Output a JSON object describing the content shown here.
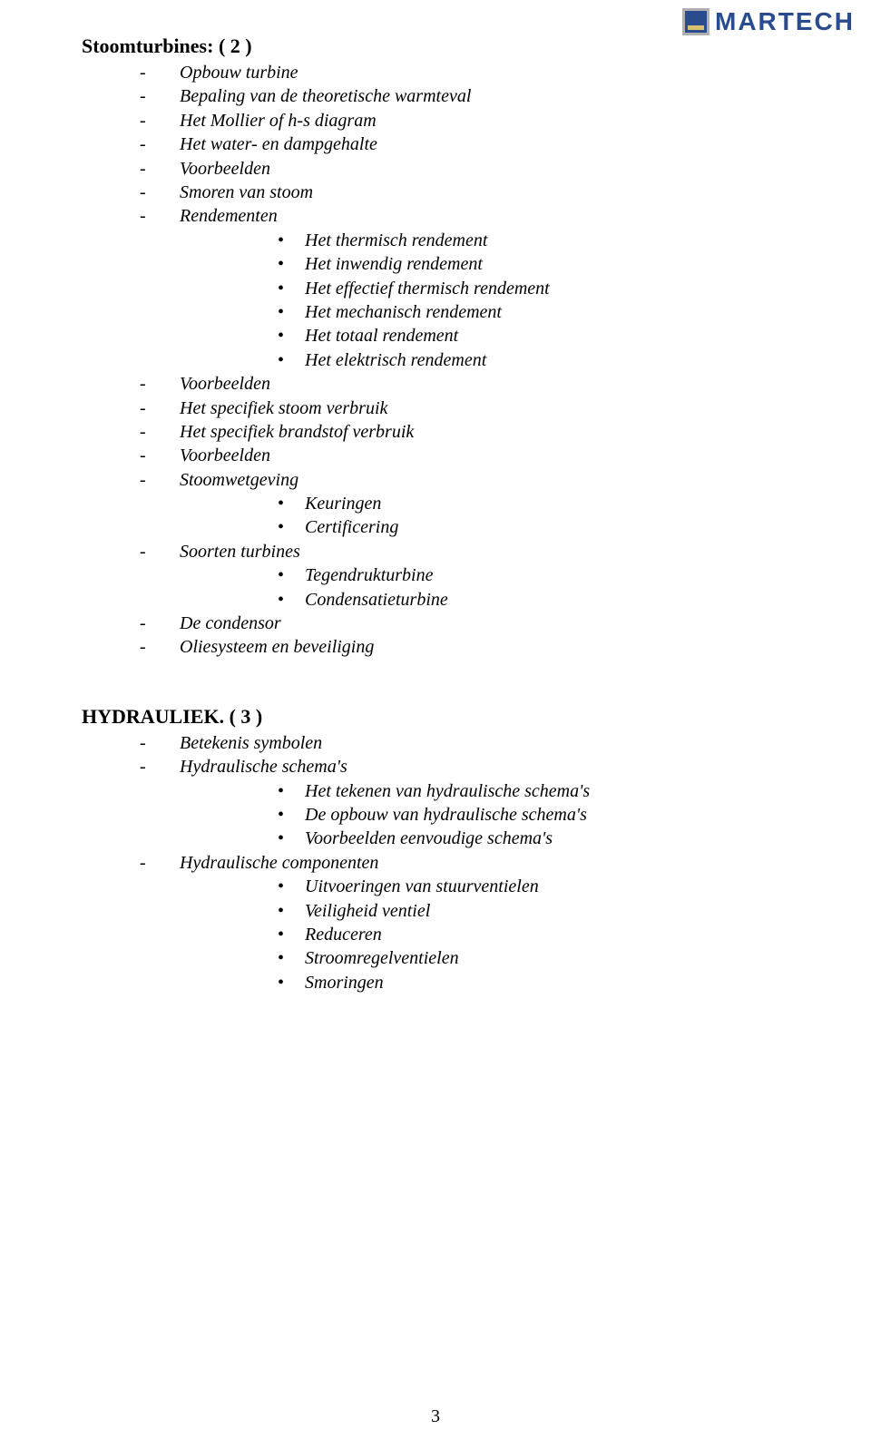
{
  "logo": {
    "text": "MARTECH"
  },
  "pageNumber": "3",
  "sections": [
    {
      "title": "Stoomturbines: ( 2 )",
      "items": [
        {
          "type": "dash",
          "text": "Opbouw turbine"
        },
        {
          "type": "dash",
          "text": "Bepaling van de theoretische warmteval"
        },
        {
          "type": "dash",
          "text": "Het Mollier of h-s diagram"
        },
        {
          "type": "dash",
          "text": "Het water- en dampgehalte"
        },
        {
          "type": "dash",
          "text": "Voorbeelden"
        },
        {
          "type": "dash",
          "text": "Smoren van stoom"
        },
        {
          "type": "dash",
          "text": "Rendementen"
        },
        {
          "type": "dot",
          "text": "Het thermisch rendement"
        },
        {
          "type": "dot",
          "text": "Het inwendig rendement"
        },
        {
          "type": "dot",
          "text": "Het effectief thermisch rendement"
        },
        {
          "type": "dot",
          "text": "Het mechanisch rendement"
        },
        {
          "type": "dot",
          "text": "Het totaal rendement"
        },
        {
          "type": "dot",
          "text": "Het elektrisch rendement"
        },
        {
          "type": "dash",
          "text": "Voorbeelden"
        },
        {
          "type": "dash",
          "text": "Het specifiek stoom verbruik"
        },
        {
          "type": "dash",
          "text": "Het specifiek brandstof verbruik"
        },
        {
          "type": "dash",
          "text": "Voorbeelden"
        },
        {
          "type": "dash",
          "text": "Stoomwetgeving"
        },
        {
          "type": "dot",
          "text": "Keuringen"
        },
        {
          "type": "dot",
          "text": "Certificering"
        },
        {
          "type": "dash",
          "text": "Soorten turbines"
        },
        {
          "type": "dot",
          "text": "Tegendrukturbine"
        },
        {
          "type": "dot",
          "text": "Condensatieturbine"
        },
        {
          "type": "dash",
          "text": "De condensor"
        },
        {
          "type": "dash",
          "text": "Oliesysteem en beveiliging"
        }
      ]
    },
    {
      "title": "HYDRAULIEK. ( 3 )",
      "items": [
        {
          "type": "dash",
          "text": "Betekenis symbolen"
        },
        {
          "type": "dash",
          "text": "Hydraulische schema's"
        },
        {
          "type": "dot",
          "text": "Het tekenen van hydraulische schema's"
        },
        {
          "type": "dot",
          "text": "De opbouw van hydraulische schema's"
        },
        {
          "type": "dot",
          "text": "Voorbeelden eenvoudige schema's"
        },
        {
          "type": "dash",
          "text": "Hydraulische componenten"
        },
        {
          "type": "dot",
          "text": "Uitvoeringen van stuurventielen"
        },
        {
          "type": "dot",
          "text": "Veiligheid ventiel"
        },
        {
          "type": "dot",
          "text": "Reduceren"
        },
        {
          "type": "dot",
          "text": "Stroomregelventielen"
        },
        {
          "type": "dot",
          "text": "Smoringen"
        }
      ]
    }
  ]
}
